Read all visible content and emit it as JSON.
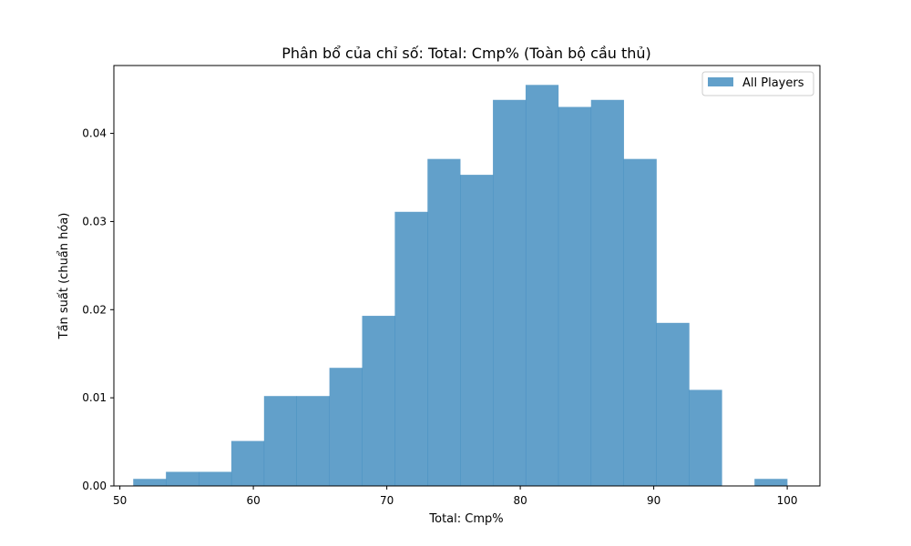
{
  "colors": {
    "bar": "#1f77b4",
    "axis": "#000000",
    "legend_border": "#cccccc"
  },
  "chart_data": {
    "type": "bar",
    "title": "Phân bổ của chỉ số: Total: Cmp% (Toàn bộ cầu thủ)",
    "xlabel": "Total: Cmp%",
    "ylabel": "Tần suất (chuẩn hóa)",
    "xlim": [
      49.55,
      102.45
    ],
    "ylim": [
      0,
      0.0477
    ],
    "xticks": [
      50,
      60,
      70,
      80,
      90,
      100
    ],
    "xtick_labels": [
      "50",
      "60",
      "70",
      "80",
      "90",
      "100"
    ],
    "yticks": [
      0.0,
      0.01,
      0.02,
      0.03,
      0.04
    ],
    "ytick_labels": [
      "0.00",
      "0.01",
      "0.02",
      "0.03",
      "0.04"
    ],
    "bin_edges": [
      51.0,
      53.45,
      55.9,
      58.35,
      60.8,
      63.25,
      65.7,
      68.15,
      70.6,
      73.05,
      75.5,
      77.95,
      80.4,
      82.85,
      85.3,
      87.75,
      90.2,
      92.65,
      95.1,
      97.55,
      100.0
    ],
    "grid": false,
    "legend_position": "upper right",
    "series": [
      {
        "name": "All Players",
        "alpha": 0.7,
        "values": [
          0.0008,
          0.0016,
          0.0016,
          0.0051,
          0.0102,
          0.0102,
          0.0134,
          0.0193,
          0.0311,
          0.0371,
          0.0353,
          0.0438,
          0.0455,
          0.043,
          0.0438,
          0.0371,
          0.0185,
          0.0109,
          0.0,
          0.0008
        ]
      }
    ]
  }
}
